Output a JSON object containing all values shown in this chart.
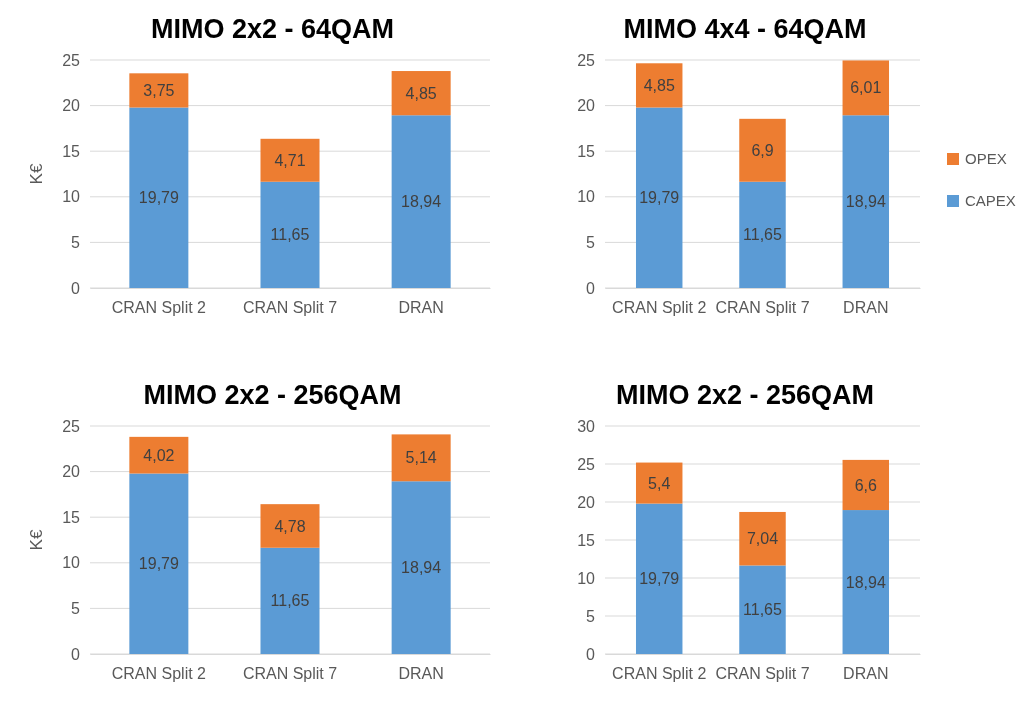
{
  "chart_data": [
    {
      "type": "bar",
      "stacked": true,
      "title": "MIMO 2x2 - 64QAM",
      "ylabel": "K€",
      "categories": [
        "CRAN Split 2",
        "CRAN Split 7",
        "DRAN"
      ],
      "ylim": [
        0,
        25
      ],
      "yticks": [
        0,
        5,
        10,
        15,
        20,
        25
      ],
      "grid": "y",
      "legend": false,
      "series": [
        {
          "color": "#5b9bd5",
          "values": [
            19.79,
            11.65,
            18.94
          ],
          "value_labels": [
            "19,79",
            "11,65",
            "18,94"
          ]
        },
        {
          "color": "#ed7d31",
          "values": [
            3.75,
            4.71,
            4.85
          ],
          "value_labels": [
            "3,75",
            "4,71",
            "4,85"
          ]
        }
      ]
    },
    {
      "type": "bar",
      "stacked": true,
      "title": "MIMO 4x4 - 64QAM",
      "categories": [
        "CRAN Split 2",
        "CRAN Split 7",
        "DRAN"
      ],
      "ylim": [
        0,
        25
      ],
      "yticks": [
        0,
        5,
        10,
        15,
        20,
        25
      ],
      "grid": "y",
      "legend": "right",
      "series": [
        {
          "name": "CAPEX",
          "color": "#5b9bd5",
          "values": [
            19.79,
            11.65,
            18.94
          ],
          "value_labels": [
            "19,79",
            "11,65",
            "18,94"
          ]
        },
        {
          "name": "OPEX",
          "color": "#ed7d31",
          "values": [
            4.85,
            6.9,
            6.01
          ],
          "value_labels": [
            "4,85",
            "6,9",
            "6,01"
          ]
        }
      ]
    },
    {
      "type": "bar",
      "stacked": true,
      "title": "MIMO 2x2 - 256QAM",
      "ylabel": "K€",
      "categories": [
        "CRAN Split 2",
        "CRAN Split 7",
        "DRAN"
      ],
      "ylim": [
        0,
        25
      ],
      "yticks": [
        0,
        5,
        10,
        15,
        20,
        25
      ],
      "grid": "y",
      "legend": false,
      "series": [
        {
          "color": "#5b9bd5",
          "values": [
            19.79,
            11.65,
            18.94
          ],
          "value_labels": [
            "19,79",
            "11,65",
            "18,94"
          ]
        },
        {
          "color": "#ed7d31",
          "values": [
            4.02,
            4.78,
            5.14
          ],
          "value_labels": [
            "4,02",
            "4,78",
            "5,14"
          ]
        }
      ]
    },
    {
      "type": "bar",
      "stacked": true,
      "title": "MIMO 2x2 - 256QAM",
      "categories": [
        "CRAN Split 2",
        "CRAN Split 7",
        "DRAN"
      ],
      "ylim": [
        0,
        30
      ],
      "yticks": [
        0,
        5,
        10,
        15,
        20,
        25,
        30
      ],
      "grid": "y",
      "legend": false,
      "series": [
        {
          "color": "#5b9bd5",
          "values": [
            19.79,
            11.65,
            18.94
          ],
          "value_labels": [
            "19,79",
            "11,65",
            "18,94"
          ]
        },
        {
          "color": "#ed7d31",
          "values": [
            5.4,
            7.04,
            6.6
          ],
          "value_labels": [
            "5,4",
            "7,04",
            "6,6"
          ]
        }
      ]
    }
  ]
}
